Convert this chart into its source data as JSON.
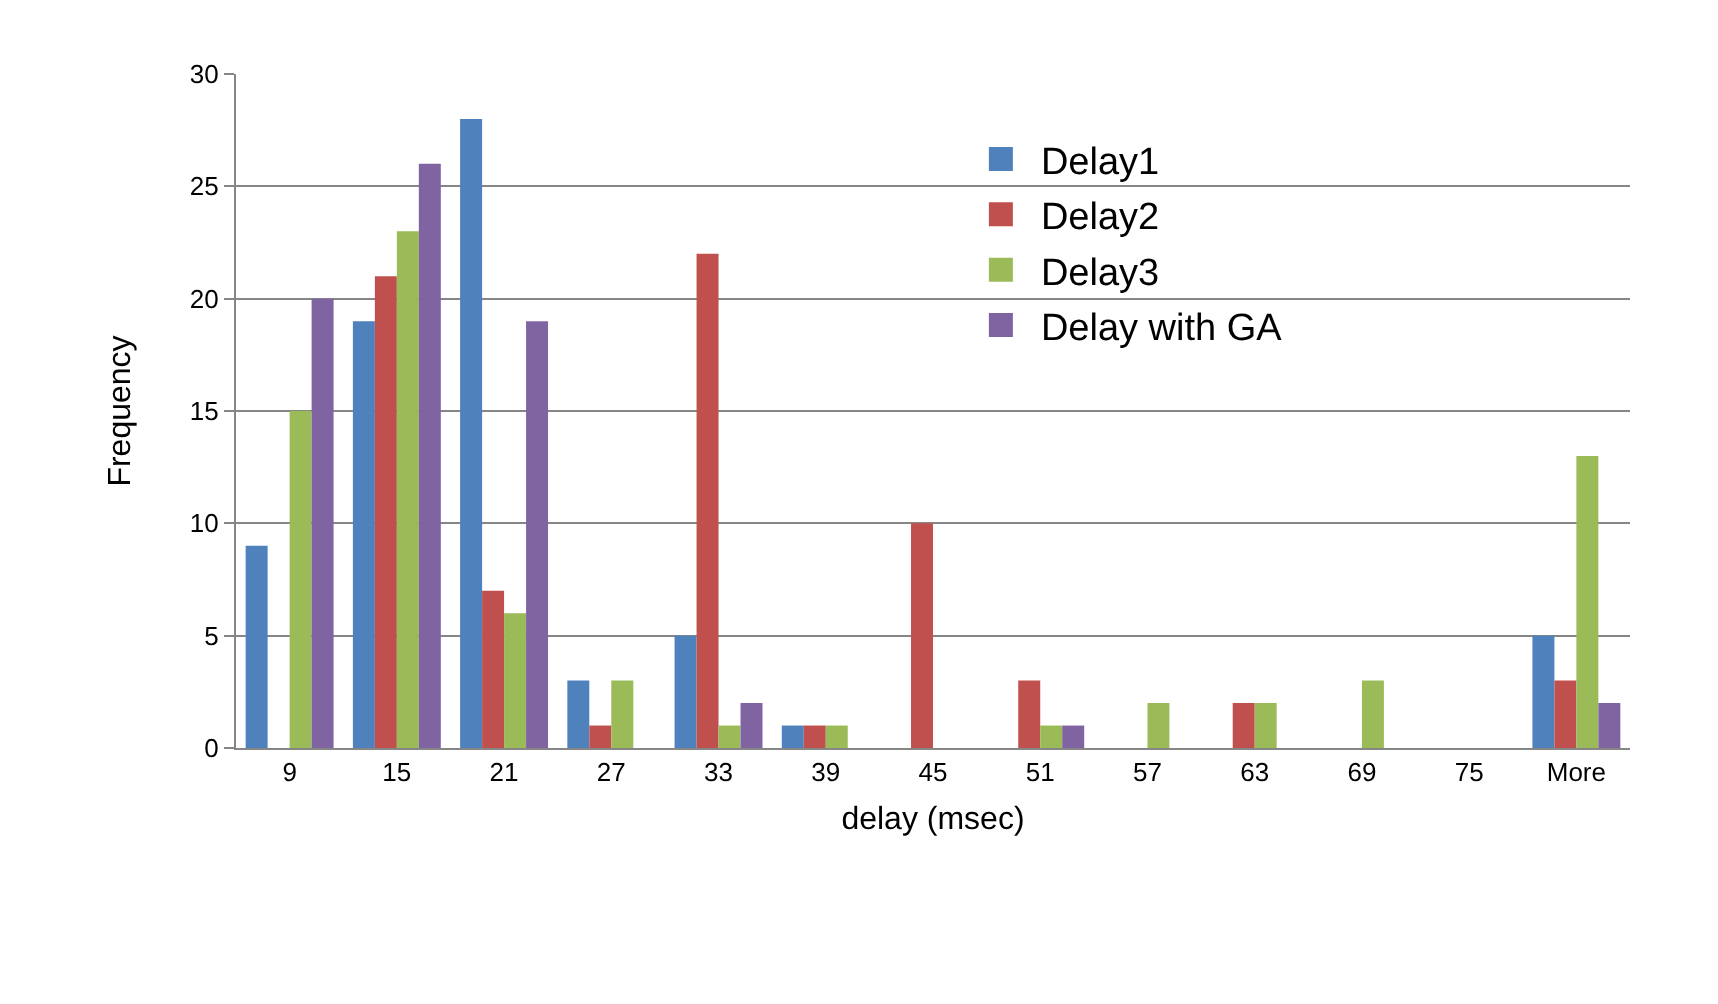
{
  "chart_data": {
    "type": "bar",
    "xlabel": "delay (msec)",
    "ylabel": "Frequency",
    "categories": [
      "9",
      "15",
      "21",
      "27",
      "33",
      "39",
      "45",
      "51",
      "57",
      "63",
      "69",
      "75",
      "More"
    ],
    "series": [
      {
        "name": "Delay1",
        "color": "#4f81bd",
        "values": [
          9,
          19,
          28,
          3,
          5,
          1,
          0,
          0,
          0,
          0,
          0,
          0,
          5
        ]
      },
      {
        "name": "Delay2",
        "color": "#c0504d",
        "values": [
          0,
          21,
          7,
          1,
          22,
          1,
          10,
          3,
          0,
          2,
          0,
          0,
          3
        ]
      },
      {
        "name": "Delay3",
        "color": "#9bbb59",
        "values": [
          15,
          23,
          6,
          3,
          1,
          1,
          0,
          1,
          2,
          2,
          3,
          0,
          13
        ]
      },
      {
        "name": "Delay with GA",
        "color": "#8064a2",
        "values": [
          20,
          26,
          19,
          0,
          2,
          0,
          0,
          1,
          0,
          0,
          0,
          0,
          2
        ]
      }
    ],
    "ylim": [
      0,
      30
    ],
    "yticks": [
      0,
      5,
      10,
      15,
      20,
      25,
      30
    ],
    "grid": "y",
    "legend": "top right"
  }
}
